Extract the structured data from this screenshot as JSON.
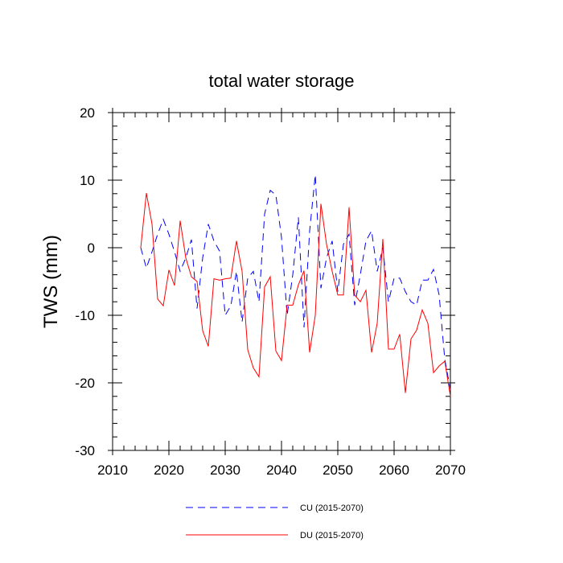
{
  "chart_data": {
    "type": "line",
    "title": "total water storage",
    "xlabel": "",
    "ylabel": "TWS  (mm)",
    "xlim": [
      2010,
      2070
    ],
    "ylim": [
      -30,
      20
    ],
    "xticks": [
      2010,
      2020,
      2030,
      2040,
      2050,
      2060,
      2070
    ],
    "yticks": [
      -30,
      -20,
      -10,
      0,
      10,
      20
    ],
    "xtick_labels": [
      "2010",
      "2020",
      "2030",
      "2040",
      "2050",
      "2060",
      "2070"
    ],
    "ytick_labels": [
      "-30",
      "-20",
      "-10",
      "0",
      "10",
      "20"
    ],
    "x": [
      2015,
      2016,
      2017,
      2018,
      2019,
      2020,
      2021,
      2022,
      2023,
      2024,
      2025,
      2026,
      2027,
      2028,
      2029,
      2030,
      2031,
      2032,
      2033,
      2034,
      2035,
      2036,
      2037,
      2038,
      2039,
      2040,
      2041,
      2042,
      2043,
      2044,
      2045,
      2046,
      2047,
      2048,
      2049,
      2050,
      2051,
      2052,
      2053,
      2054,
      2055,
      2056,
      2057,
      2058,
      2059,
      2060,
      2061,
      2062,
      2063,
      2064,
      2065,
      2066,
      2067,
      2068,
      2069,
      2070
    ],
    "series": [
      {
        "name": "CU (2015-2070)",
        "color": "#0000ff",
        "style": "dashed",
        "values": [
          0.0,
          -3.0,
          -0.6,
          2.0,
          4.2,
          2.0,
          -0.6,
          -3.5,
          -1.5,
          1.2,
          -9.0,
          -1.5,
          3.5,
          1.0,
          -0.5,
          -10.0,
          -8.6,
          -3.5,
          -11.0,
          -4.5,
          -3.5,
          -8.0,
          5.0,
          8.5,
          7.8,
          1.5,
          -10.0,
          -4.0,
          4.5,
          -11.8,
          2.5,
          10.8,
          -6.0,
          -1.5,
          1.0,
          -6.5,
          0.5,
          2.0,
          -8.5,
          -4.0,
          1.0,
          2.5,
          -3.5,
          0.0,
          -8.0,
          -4.5,
          -4.5,
          -6.5,
          -8.0,
          -8.5,
          -4.8,
          -4.8,
          -3.2,
          -7.0,
          -16.5,
          -21.0
        ]
      },
      {
        "name": "DU (2015-2070)",
        "color": "#ff0000",
        "style": "solid",
        "values": [
          0.0,
          8.1,
          3.5,
          -7.6,
          -8.6,
          -3.3,
          -5.6,
          4.0,
          -1.5,
          -4.3,
          -5.0,
          -12.3,
          -14.6,
          -4.6,
          -4.8,
          -4.6,
          -4.5,
          1.0,
          -3.5,
          -15.1,
          -17.8,
          -19.1,
          -5.8,
          -4.3,
          -15.3,
          -16.7,
          -8.5,
          -8.5,
          -5.5,
          -3.4,
          -15.5,
          -10.0,
          6.5,
          0.5,
          -3.5,
          -7.0,
          -7.0,
          6.0,
          -7.0,
          -8.0,
          -6.3,
          -15.5,
          -11.2,
          1.3,
          -15.0,
          -15.0,
          -12.8,
          -21.5,
          -13.5,
          -12.2,
          -9.2,
          -11.2,
          -18.5,
          -17.5,
          -16.8,
          -22.0
        ]
      }
    ],
    "legend": {
      "position": "bottom",
      "entries": [
        "CU (2015-2070)",
        "DU (2015-2070)"
      ]
    },
    "grid": false
  }
}
